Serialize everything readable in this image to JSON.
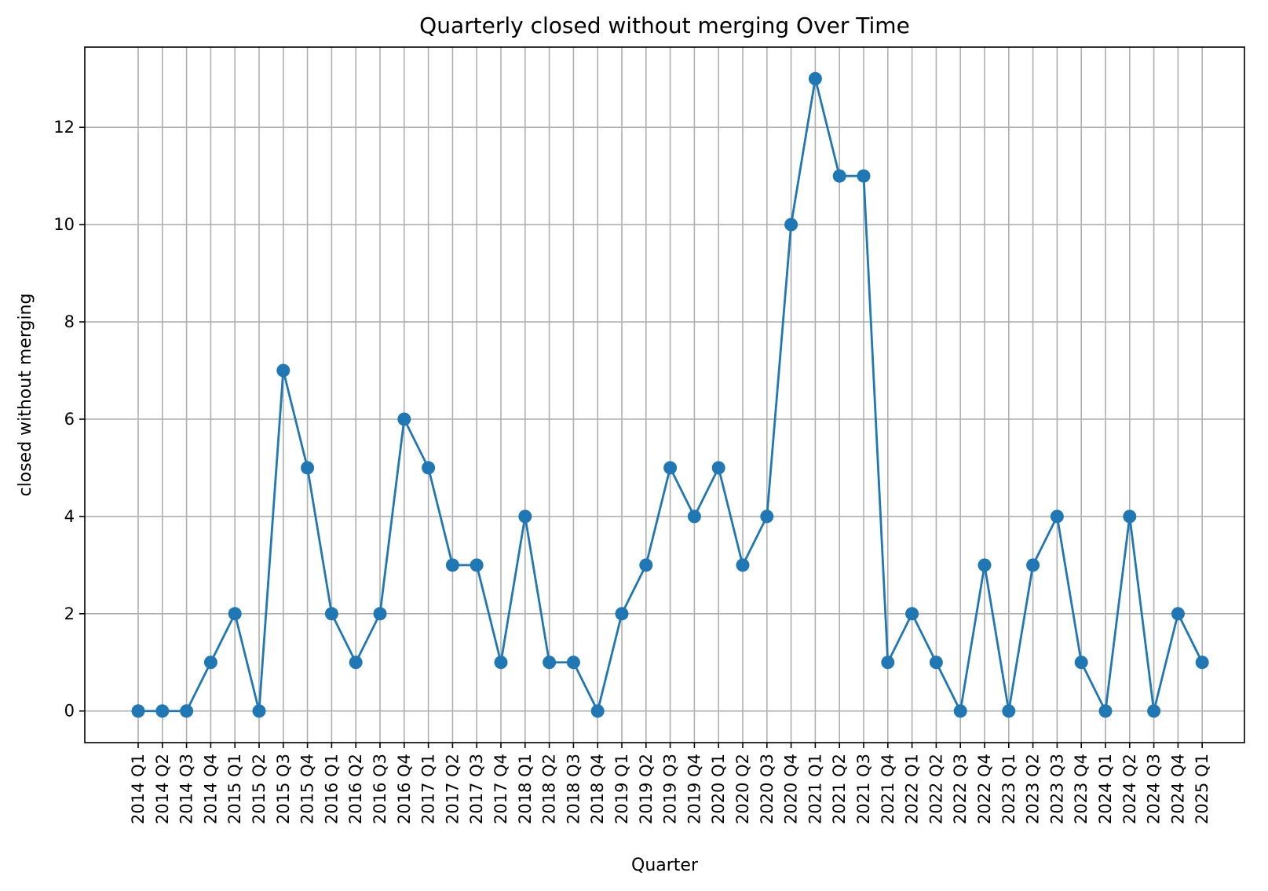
{
  "chart_data": {
    "type": "line",
    "title": "Quarterly closed without merging Over Time",
    "xlabel": "Quarter",
    "ylabel": "closed without merging",
    "categories": [
      "2014 Q1",
      "2014 Q2",
      "2014 Q3",
      "2014 Q4",
      "2015 Q1",
      "2015 Q2",
      "2015 Q3",
      "2015 Q4",
      "2016 Q1",
      "2016 Q2",
      "2016 Q3",
      "2016 Q4",
      "2017 Q1",
      "2017 Q2",
      "2017 Q3",
      "2017 Q4",
      "2018 Q1",
      "2018 Q2",
      "2018 Q3",
      "2018 Q4",
      "2019 Q1",
      "2019 Q2",
      "2019 Q3",
      "2019 Q4",
      "2020 Q1",
      "2020 Q2",
      "2020 Q3",
      "2020 Q4",
      "2021 Q1",
      "2021 Q2",
      "2021 Q3",
      "2021 Q4",
      "2022 Q1",
      "2022 Q2",
      "2022 Q3",
      "2022 Q4",
      "2023 Q1",
      "2023 Q2",
      "2023 Q3",
      "2023 Q4",
      "2024 Q1",
      "2024 Q2",
      "2024 Q3",
      "2024 Q4",
      "2025 Q1"
    ],
    "series": [
      {
        "values": [
          0,
          0,
          0,
          1,
          2,
          0,
          7,
          5,
          2,
          1,
          2,
          6,
          5,
          3,
          3,
          1,
          4,
          1,
          1,
          0,
          2,
          3,
          5,
          4,
          5,
          3,
          4,
          10,
          13,
          11,
          11,
          1,
          2,
          1,
          0,
          3,
          0,
          3,
          4,
          1,
          0,
          4,
          0,
          2,
          1
        ]
      }
    ],
    "ylim": [
      -0.65,
      13.65
    ],
    "yticks": [
      0,
      2,
      4,
      6,
      8,
      10,
      12
    ],
    "grid": true,
    "line_color": "#1f77b4"
  }
}
